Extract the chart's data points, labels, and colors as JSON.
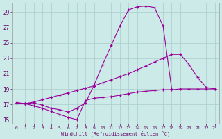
{
  "xlabel": "Windchill (Refroidissement éolien,°C)",
  "background_color": "#cceae8",
  "grid_color": "#aacccc",
  "line_color": "#990099",
  "xlim": [
    -0.5,
    23.5
  ],
  "ylim": [
    14.5,
    30.2
  ],
  "xticks": [
    0,
    1,
    2,
    3,
    4,
    5,
    6,
    7,
    8,
    9,
    10,
    11,
    12,
    13,
    14,
    15,
    16,
    17,
    18,
    19,
    20,
    21,
    22,
    23
  ],
  "yticks": [
    15,
    17,
    19,
    21,
    23,
    25,
    27,
    29
  ],
  "line1_x": [
    0,
    1,
    2,
    3,
    4,
    5,
    6,
    7,
    8,
    9,
    10,
    11,
    12,
    13,
    14,
    15,
    16,
    17,
    18
  ],
  "line1_y": [
    17.2,
    17.1,
    17.2,
    16.9,
    16.5,
    16.3,
    16.0,
    16.5,
    17.2,
    19.5,
    22.2,
    24.7,
    27.2,
    29.3,
    29.7,
    29.8,
    29.6,
    27.2,
    19.0
  ],
  "line2_x": [
    0,
    1,
    2,
    3,
    4,
    5,
    6,
    7,
    8,
    9,
    10,
    11,
    12,
    13,
    14,
    15,
    16,
    17,
    18,
    19,
    20,
    21,
    22,
    23
  ],
  "line2_y": [
    17.2,
    17.1,
    17.3,
    17.6,
    17.9,
    18.2,
    18.5,
    18.8,
    19.1,
    19.4,
    19.8,
    20.2,
    20.6,
    21.0,
    21.5,
    22.0,
    22.5,
    23.0,
    23.5,
    23.5,
    22.2,
    20.5,
    19.2,
    19.0
  ],
  "line3_x": [
    0,
    1,
    2,
    3,
    4,
    5,
    6,
    7,
    8,
    9,
    10,
    11,
    12,
    13,
    14,
    15,
    16,
    17,
    18,
    19,
    20,
    21,
    22,
    23
  ],
  "line3_y": [
    17.2,
    17.1,
    16.8,
    16.5,
    16.1,
    15.7,
    15.3,
    15.0,
    17.5,
    17.8,
    17.9,
    18.0,
    18.2,
    18.4,
    18.6,
    18.7,
    18.8,
    18.9,
    18.9,
    19.0,
    19.0,
    19.0,
    19.0,
    19.0
  ]
}
